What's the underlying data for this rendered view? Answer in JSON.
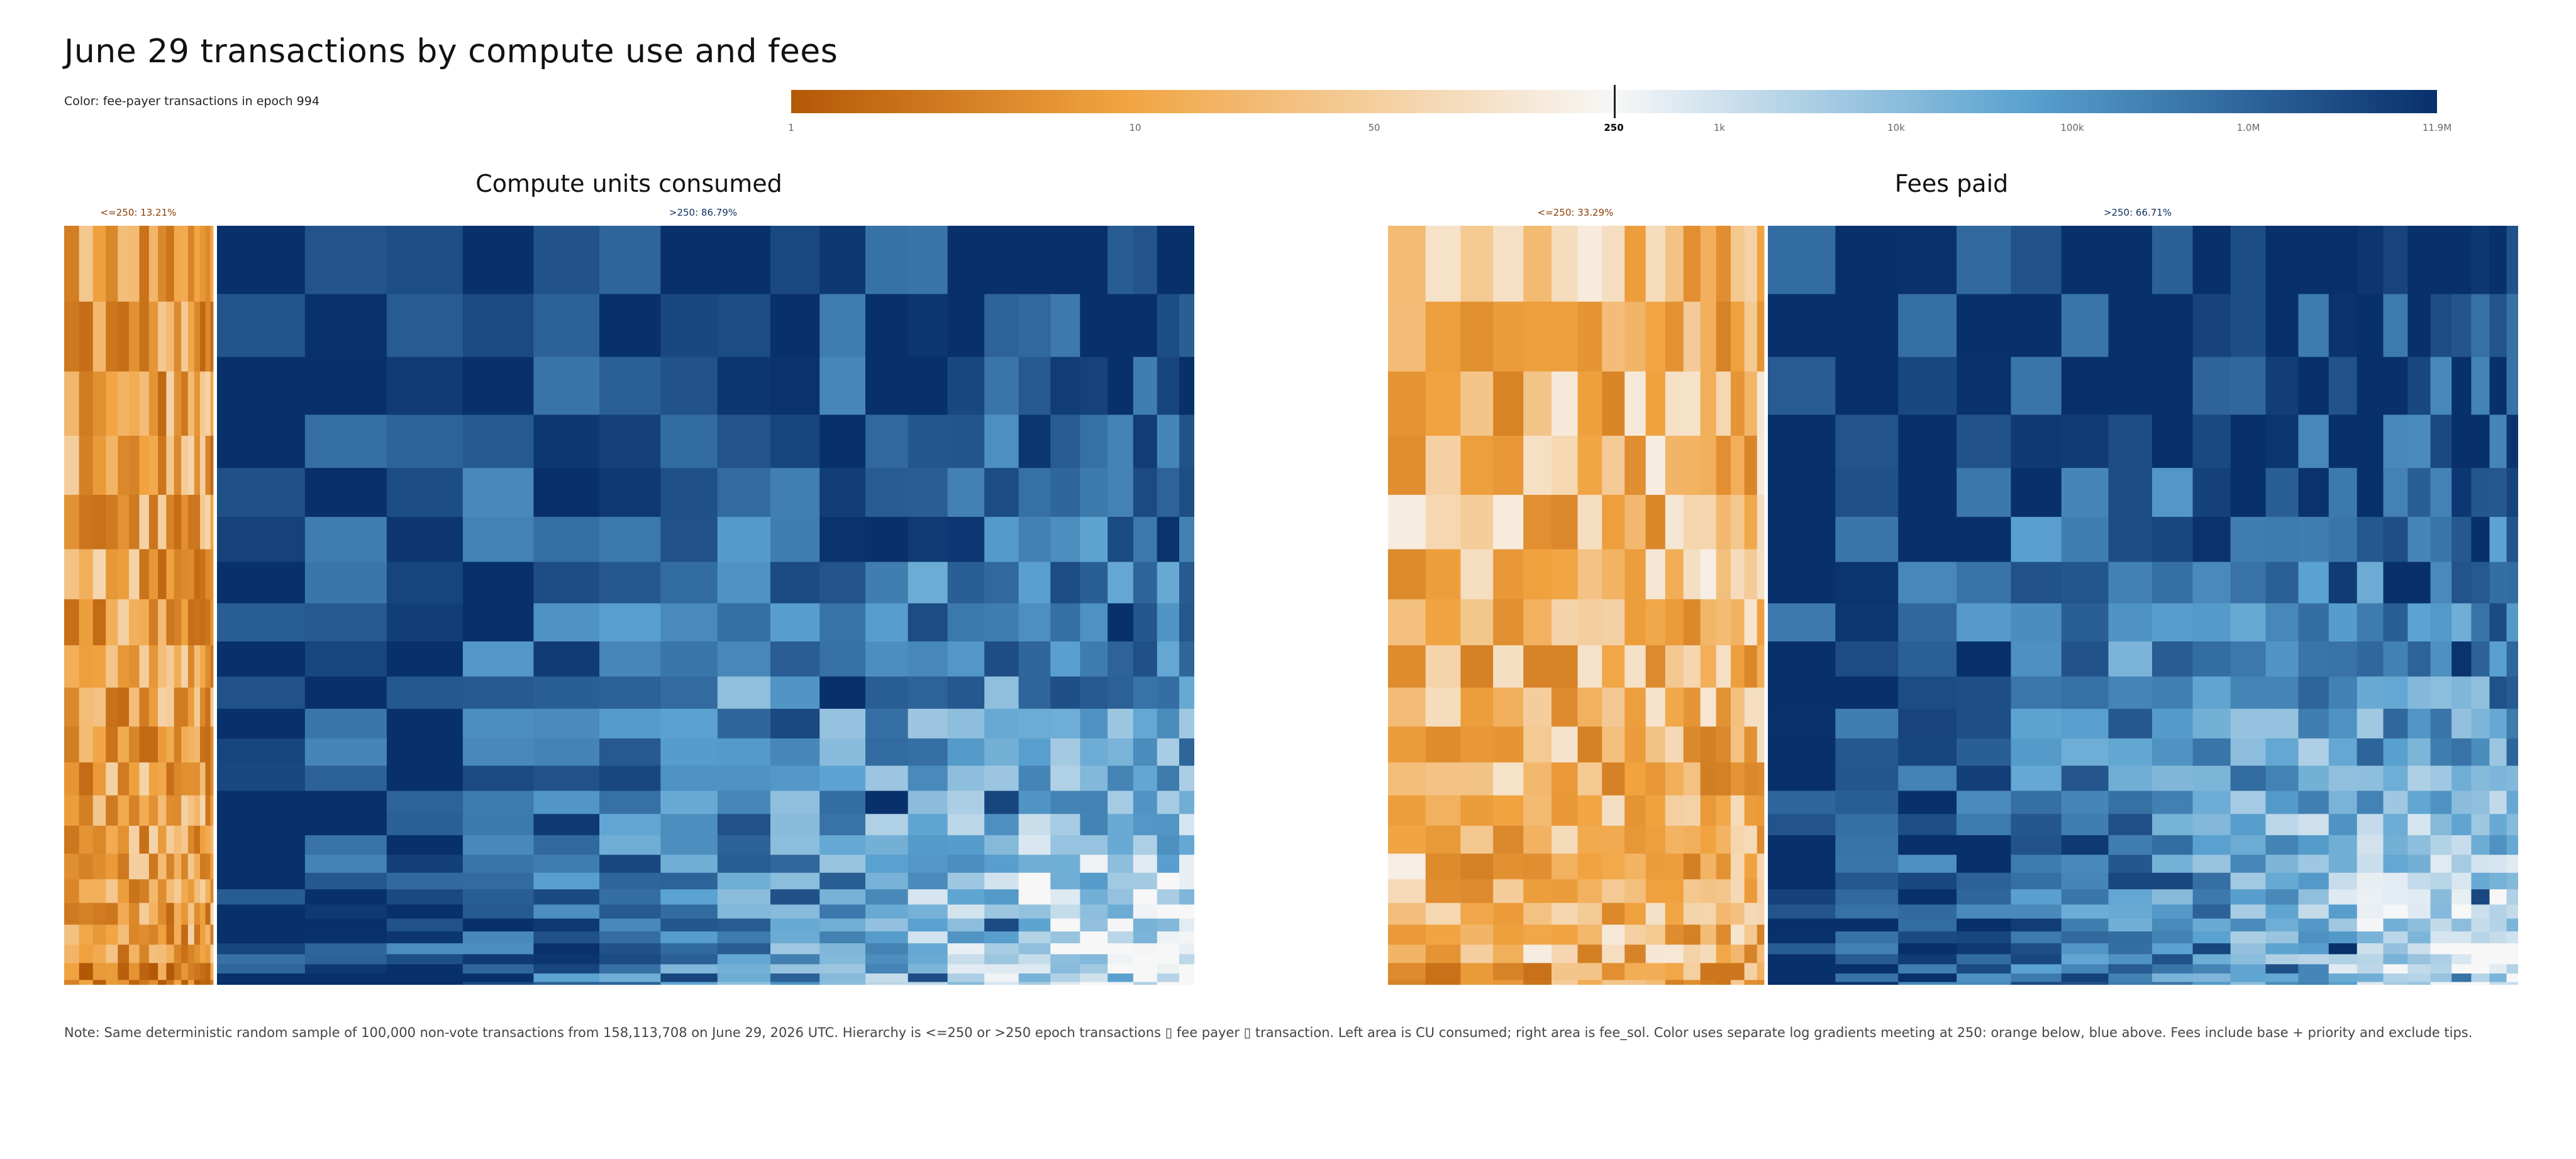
{
  "title": "June 29 transactions by compute use and fees",
  "subtitle": "Color: fee-payer transactions in epoch 994",
  "colorbar": {
    "ticks": [
      "1",
      "10",
      "50",
      "250",
      "1k",
      "10k",
      "100k",
      "1.0M",
      "11.9M"
    ],
    "tick_values": [
      1,
      10,
      50,
      250,
      1000,
      10000,
      100000,
      1000000,
      11900000
    ],
    "midpoint_value": 250,
    "scale": "log",
    "colors": {
      "low_end": "#b35806",
      "low_mid": "#f1a340",
      "center": "#f7f7f7",
      "high_mid": "#5aa2d0",
      "high_end": "#08306b"
    }
  },
  "panels": [
    {
      "title": "Compute units consumed",
      "low_label": "<=250: 13.21%",
      "high_label": ">250: 86.79%",
      "low_share": 0.1321,
      "high_share": 0.8679
    },
    {
      "title": "Fees paid",
      "low_label": "<=250: 33.29%",
      "high_label": ">250: 66.71%",
      "low_share": 0.3329,
      "high_share": 0.6671
    }
  ],
  "chart_data": {
    "type": "heatmap",
    "title": "June 29 transactions by compute use and fees",
    "subtitle": "Color: fee-payer transactions in epoch 994",
    "color_scale": {
      "type": "diverging-log",
      "midpoint": 250,
      "min": 1,
      "max": 11900000,
      "below_color": "orange",
      "above_color": "blue"
    },
    "panels": [
      {
        "name": "Compute units consumed",
        "groups": [
          {
            "label": "<=250",
            "share_percent": 13.21
          },
          {
            "label": ">250",
            "share_percent": 86.79
          }
        ]
      },
      {
        "name": "Fees paid",
        "groups": [
          {
            "label": "<=250",
            "share_percent": 33.29
          },
          {
            "label": ">250",
            "share_percent": 66.71
          }
        ]
      }
    ]
  },
  "note": "Note: Same deterministic random sample of 100,000 non-vote transactions from 158,113,708 on June 29, 2026 UTC. Hierarchy is <=250 or >250 epoch transactions ▯ fee payer ▯ transaction. Left area is CU consumed; right area is fee_sol. Color uses separate log gradients meeting at 250: orange below, blue above. Fees include base + priority and exclude tips."
}
